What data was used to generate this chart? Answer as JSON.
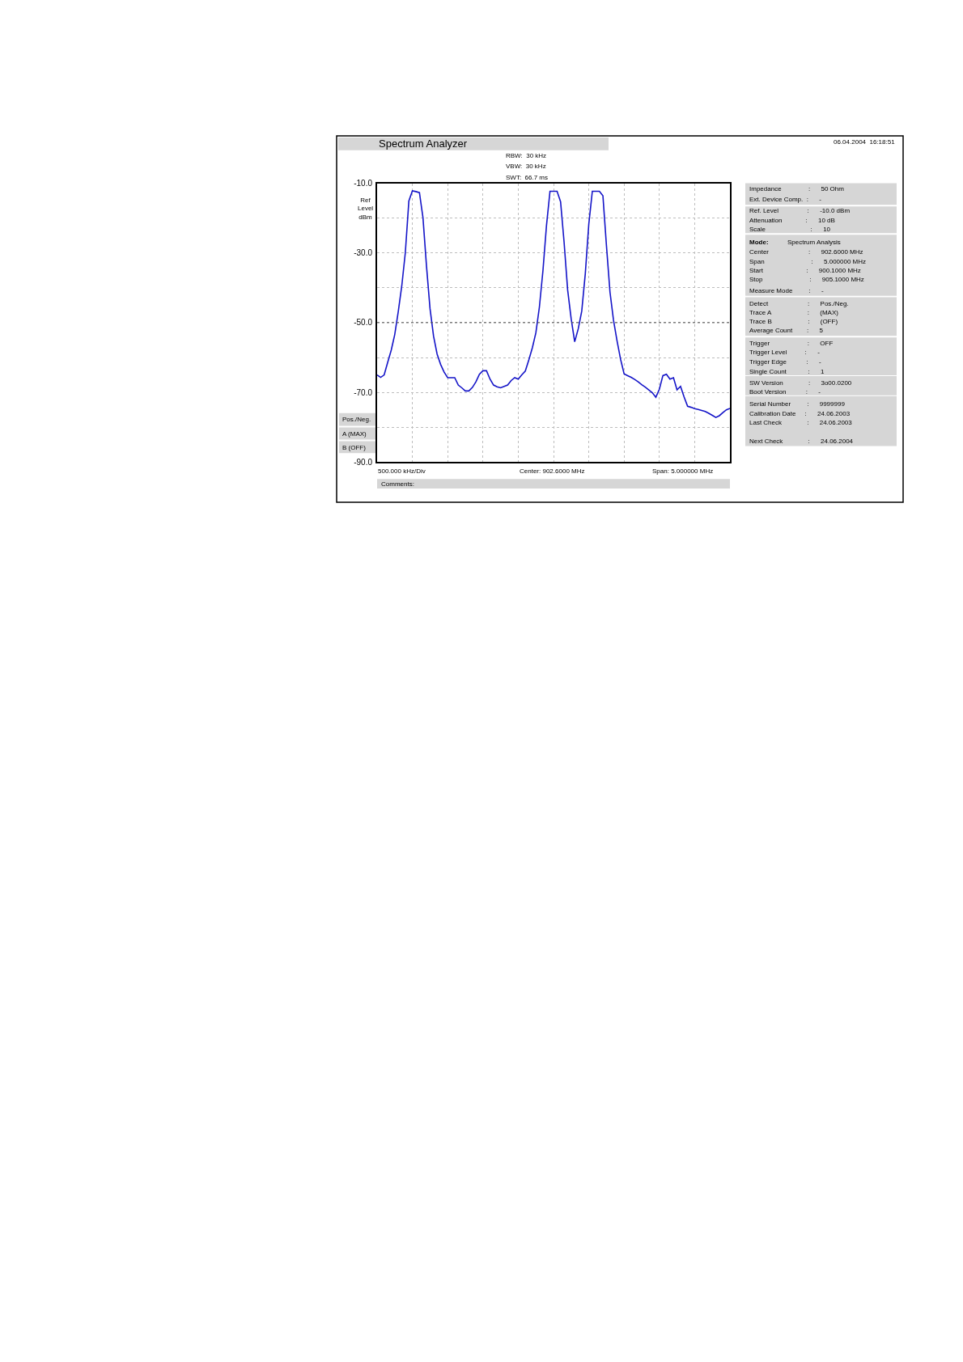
{
  "chart_data": {
    "type": "line",
    "title": "Spectrum Analyzer",
    "ylabel": "Ref Level dBm",
    "categories": [
      null,
      null,
      null,
      null,
      null,
      null,
      null,
      null,
      null,
      null,
      null,
      null,
      null,
      null,
      null,
      null,
      null,
      null,
      null,
      null,
      null,
      null,
      null,
      null,
      null,
      null,
      null,
      null,
      null,
      null,
      null,
      null,
      null,
      null,
      null,
      null,
      null,
      null,
      null,
      null,
      null,
      null,
      null,
      null,
      null,
      null,
      null,
      null,
      null,
      null,
      null,
      null,
      null,
      null,
      null,
      null,
      null,
      null,
      null,
      null,
      null,
      null,
      null,
      null,
      null,
      null,
      null,
      null,
      null,
      null,
      null,
      null,
      null,
      null,
      null,
      null,
      null,
      null,
      null,
      null,
      null,
      null,
      null,
      null,
      null,
      null,
      null,
      null,
      null,
      null,
      null,
      null,
      null,
      null,
      null,
      null,
      null,
      null,
      null,
      null,
      null
    ],
    "ylim": [
      -90,
      -10
    ],
    "yticks": [
      {
        "value": -90,
        "label": "-90.0"
      },
      {
        "value": -80,
        "label": null
      },
      {
        "value": -70,
        "label": "-70.0"
      },
      {
        "value": -60,
        "label": null
      },
      {
        "value": -50,
        "label": "-50.0"
      },
      {
        "value": -40,
        "label": null
      },
      {
        "value": -30,
        "label": "-30.0"
      },
      {
        "value": -20,
        "label": null
      },
      {
        "value": -10,
        "label": "-10.0"
      }
    ],
    "tick_labels": "y",
    "grid": true,
    "marker": "none",
    "line_style": "solid",
    "ref_lines": [
      {
        "axis": "y",
        "value": -50,
        "color": "#555555",
        "line_style": "dotted"
      }
    ],
    "series": [
      {
        "color": "#1414c8",
        "values": [
          -65.0,
          -65.7,
          -65.0,
          -61.4,
          -57.9,
          -53.4,
          -46.8,
          -39.4,
          -29.9,
          -15.1,
          -12.2,
          -12.4,
          -12.7,
          -19.9,
          -33.8,
          -46.0,
          -53.9,
          -59.0,
          -62.0,
          -64.2,
          -65.8,
          -65.8,
          -65.8,
          -67.9,
          -68.7,
          -69.6,
          -69.6,
          -68.6,
          -67.0,
          -64.8,
          -63.8,
          -63.8,
          -66.2,
          -67.9,
          -68.4,
          -68.7,
          -68.3,
          -67.9,
          -66.6,
          -65.8,
          -66.2,
          -65.0,
          -63.9,
          -60.7,
          -57.2,
          -52.9,
          -45.5,
          -35.1,
          -22.2,
          -12.3,
          -12.3,
          -12.3,
          -15.3,
          -27.0,
          -40.6,
          -48.9,
          -55.5,
          -51.8,
          -46.7,
          -36.0,
          -21.7,
          -12.3,
          -12.3,
          -12.3,
          -13.6,
          -27.9,
          -41.2,
          -49.3,
          -55.2,
          -60.5,
          -64.7,
          -65.2,
          -65.7,
          -66.3,
          -67.0,
          -67.8,
          -68.5,
          -69.3,
          -70.1,
          -71.4,
          -69.1,
          -65.2,
          -64.8,
          -66.2,
          -65.8,
          -69.3,
          -68.3,
          -71.3,
          -74.0,
          -74.3,
          -74.7,
          -74.9,
          -75.2,
          -75.5,
          -76.0,
          -76.6,
          -77.2,
          -76.7,
          -75.8,
          -75.0,
          -74.6
        ]
      }
    ],
    "annotations": [
      "RBW:  30 kHz",
      "VBW:  30 kHz",
      "SWT:  66.7 ms",
      "06.04.2004  16:18:51",
      "Pos./Neg.",
      "A (MAX)",
      "B (OFF)",
      "500.000 kHz/Div",
      "Center: 902.6000 MHz",
      "Span: 5.000000 MHz",
      "Comments:",
      "Impedance : 50 Ohm",
      "Ext. Device Comp. : -",
      "Ref. Level : -10.0 dBm",
      "Attenuation : 10 dB",
      "Scale : 10",
      "Mode: Spectrum Analysis",
      "Center : 902.6000 MHz",
      "Span : 5.000000 MHz",
      "Start : 900.1000 MHz",
      "Stop : 905.1000 MHz",
      "Measure Mode : -",
      "Detect : Pos./Neg.",
      "Trace A : (MAX)",
      "Trace B : (OFF)",
      "Average Count : 5",
      "Trigger : OFF",
      "Trigger Level : -",
      "Trigger Edge : -",
      "Single Count : 1",
      "SW Version : 3o00.0200",
      "Boot Version : -",
      "Serial Number : 9999999",
      "Calibration Date : 24.06.2003",
      "Last Check : 24.06.2003",
      "Next Check : 24.06.2004"
    ]
  }
}
